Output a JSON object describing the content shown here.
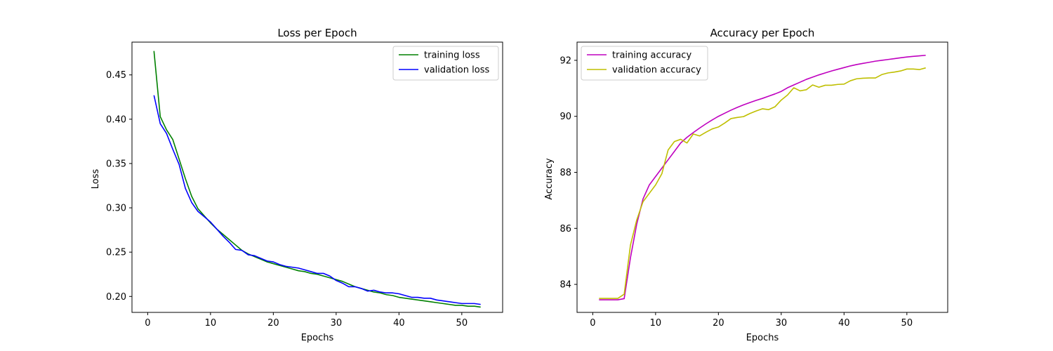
{
  "chart_data": [
    {
      "type": "line",
      "title": "Loss per Epoch",
      "xlabel": "Epochs",
      "ylabel": "Loss",
      "xlim": [
        -2.5,
        56.5
      ],
      "ylim": [
        0.182,
        0.487
      ],
      "xticks": [
        0,
        10,
        20,
        30,
        40,
        50
      ],
      "yticks": [
        0.2,
        0.25,
        0.3,
        0.35,
        0.4,
        0.45
      ],
      "ytick_labels": [
        "0.20",
        "0.25",
        "0.30",
        "0.35",
        "0.40",
        "0.45"
      ],
      "legend_position": "upper right",
      "grid": false,
      "x": [
        1,
        2,
        3,
        4,
        5,
        6,
        7,
        8,
        9,
        10,
        11,
        12,
        13,
        14,
        15,
        16,
        17,
        18,
        19,
        20,
        21,
        22,
        23,
        24,
        25,
        26,
        27,
        28,
        29,
        30,
        31,
        32,
        33,
        34,
        35,
        36,
        37,
        38,
        39,
        40,
        41,
        42,
        43,
        44,
        45,
        46,
        47,
        48,
        49,
        50,
        51,
        52,
        53
      ],
      "series": [
        {
          "name": "training loss",
          "color": "#008000",
          "values": [
            0.477,
            0.403,
            0.388,
            0.377,
            0.355,
            0.333,
            0.313,
            0.299,
            0.291,
            0.283,
            0.276,
            0.27,
            0.264,
            0.258,
            0.252,
            0.248,
            0.245,
            0.242,
            0.239,
            0.237,
            0.235,
            0.233,
            0.231,
            0.229,
            0.228,
            0.226,
            0.225,
            0.223,
            0.221,
            0.219,
            0.217,
            0.214,
            0.211,
            0.209,
            0.207,
            0.205,
            0.204,
            0.202,
            0.201,
            0.199,
            0.198,
            0.197,
            0.196,
            0.195,
            0.194,
            0.193,
            0.192,
            0.191,
            0.19,
            0.19,
            0.189,
            0.189,
            0.188
          ]
        },
        {
          "name": "validation loss",
          "color": "#0000ff",
          "values": [
            0.427,
            0.395,
            0.384,
            0.366,
            0.349,
            0.322,
            0.306,
            0.296,
            0.29,
            0.284,
            0.276,
            0.268,
            0.261,
            0.253,
            0.252,
            0.247,
            0.246,
            0.243,
            0.24,
            0.239,
            0.236,
            0.234,
            0.233,
            0.232,
            0.23,
            0.228,
            0.226,
            0.226,
            0.223,
            0.218,
            0.215,
            0.211,
            0.211,
            0.209,
            0.206,
            0.207,
            0.205,
            0.204,
            0.204,
            0.203,
            0.201,
            0.199,
            0.199,
            0.198,
            0.198,
            0.196,
            0.195,
            0.194,
            0.193,
            0.192,
            0.192,
            0.192,
            0.191
          ]
        }
      ]
    },
    {
      "type": "line",
      "title": "Accuracy per Epoch",
      "xlabel": "Epochs",
      "ylabel": "Accuracy",
      "xlim": [
        -2.5,
        56.5
      ],
      "ylim": [
        83.0,
        92.65
      ],
      "xticks": [
        0,
        10,
        20,
        30,
        40,
        50
      ],
      "yticks": [
        84,
        86,
        88,
        90,
        92
      ],
      "ytick_labels": [
        "84",
        "86",
        "88",
        "90",
        "92"
      ],
      "legend_position": "upper left",
      "grid": false,
      "x": [
        1,
        2,
        3,
        4,
        5,
        6,
        7,
        8,
        9,
        10,
        11,
        12,
        13,
        14,
        15,
        16,
        17,
        18,
        19,
        20,
        21,
        22,
        23,
        24,
        25,
        26,
        27,
        28,
        29,
        30,
        31,
        32,
        33,
        34,
        35,
        36,
        37,
        38,
        39,
        40,
        41,
        42,
        43,
        44,
        45,
        46,
        47,
        48,
        49,
        50,
        51,
        52,
        53
      ],
      "series": [
        {
          "name": "training accuracy",
          "color": "#bf00bf",
          "values": [
            83.45,
            83.45,
            83.45,
            83.45,
            83.49,
            84.95,
            86.15,
            87.05,
            87.55,
            87.85,
            88.15,
            88.45,
            88.75,
            89.05,
            89.25,
            89.42,
            89.58,
            89.73,
            89.87,
            90.0,
            90.11,
            90.22,
            90.32,
            90.41,
            90.49,
            90.57,
            90.64,
            90.72,
            90.8,
            90.89,
            91.02,
            91.12,
            91.22,
            91.32,
            91.4,
            91.48,
            91.55,
            91.62,
            91.68,
            91.74,
            91.8,
            91.85,
            91.89,
            91.93,
            91.97,
            92.0,
            92.03,
            92.06,
            92.09,
            92.12,
            92.14,
            92.16,
            92.18
          ]
        },
        {
          "name": "validation accuracy",
          "color": "#bfbf00",
          "values": [
            83.5,
            83.5,
            83.5,
            83.5,
            83.65,
            85.4,
            86.3,
            86.95,
            87.25,
            87.55,
            87.95,
            88.8,
            89.1,
            89.18,
            89.05,
            89.37,
            89.3,
            89.43,
            89.55,
            89.62,
            89.76,
            89.92,
            89.96,
            89.99,
            90.1,
            90.19,
            90.27,
            90.24,
            90.34,
            90.58,
            90.76,
            91.02,
            90.91,
            90.95,
            91.12,
            91.04,
            91.11,
            91.11,
            91.14,
            91.15,
            91.27,
            91.34,
            91.36,
            91.37,
            91.37,
            91.49,
            91.55,
            91.58,
            91.62,
            91.69,
            91.69,
            91.67,
            91.73
          ]
        }
      ]
    }
  ]
}
